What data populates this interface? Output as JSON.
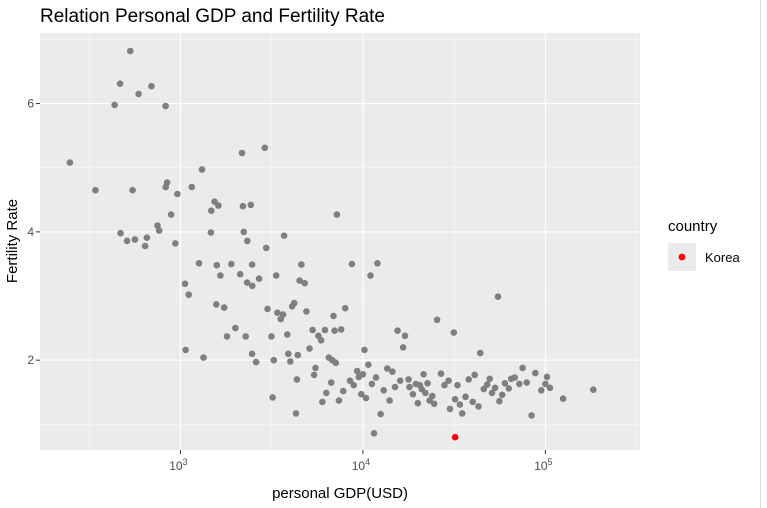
{
  "chart_data": {
    "type": "scatter",
    "title": "Relation Personal GDP and Fertility Rate",
    "xlabel": "personal GDP(USD)",
    "ylabel": "Fertility Rate",
    "x_scale": "log10",
    "xlim": [
      170,
      330000
    ],
    "ylim": [
      0.6,
      7.1
    ],
    "x_ticks": [
      {
        "value": 1000,
        "base": "10",
        "exp": "3"
      },
      {
        "value": 10000,
        "base": "10",
        "exp": "4"
      },
      {
        "value": 100000,
        "base": "10",
        "exp": "5"
      }
    ],
    "y_ticks": [
      {
        "value": 2,
        "label": "2"
      },
      {
        "value": 4,
        "label": "4"
      },
      {
        "value": 6,
        "label": "6"
      }
    ],
    "grid": true,
    "panel_background": "#ebebeb",
    "point_color": "#7f7f7f",
    "highlight_color": "#ff0000",
    "legend": {
      "title": "country",
      "position": "right",
      "items": [
        {
          "label": "Korea",
          "color": "#ff0000"
        }
      ]
    },
    "series": [
      {
        "color": "#7f7f7f",
        "points": [
          [
            248,
            5.08
          ],
          [
            342,
            4.65
          ],
          [
            436,
            5.98
          ],
          [
            467,
            6.31
          ],
          [
            531,
            6.82
          ],
          [
            590,
            6.15
          ],
          [
            693,
            6.27
          ],
          [
            829,
            5.96
          ],
          [
            470,
            3.98
          ],
          [
            510,
            3.86
          ],
          [
            547,
            4.65
          ],
          [
            563,
            3.88
          ],
          [
            640,
            3.78
          ],
          [
            655,
            3.91
          ],
          [
            749,
            4.1
          ],
          [
            765,
            4.02
          ],
          [
            830,
            4.7
          ],
          [
            845,
            4.77
          ],
          [
            889,
            4.27
          ],
          [
            937,
            3.82
          ],
          [
            962,
            4.59
          ],
          [
            1059,
            3.19
          ],
          [
            1068,
            2.16
          ],
          [
            1110,
            3.02
          ],
          [
            1155,
            4.7
          ],
          [
            1264,
            3.51
          ],
          [
            1313,
            4.97
          ],
          [
            1338,
            2.04
          ],
          [
            1468,
            3.99
          ],
          [
            1477,
            4.33
          ],
          [
            1540,
            4.47
          ],
          [
            1572,
            2.87
          ],
          [
            1582,
            3.48
          ],
          [
            1614,
            4.41
          ],
          [
            1657,
            3.32
          ],
          [
            1737,
            2.82
          ],
          [
            1800,
            2.37
          ],
          [
            1900,
            3.5
          ],
          [
            2000,
            2.5
          ],
          [
            2127,
            3.34
          ],
          [
            2200,
            4.4
          ],
          [
            2176,
            5.23
          ],
          [
            2225,
            4.0
          ],
          [
            2280,
            2.37
          ],
          [
            2326,
            3.86
          ],
          [
            2321,
            3.21
          ],
          [
            2430,
            4.42
          ],
          [
            2470,
            3.49
          ],
          [
            2478,
            3.16
          ],
          [
            2470,
            2.1
          ],
          [
            2600,
            1.97
          ],
          [
            2700,
            3.27
          ],
          [
            2900,
            5.31
          ],
          [
            2950,
            3.75
          ],
          [
            3000,
            2.8
          ],
          [
            3150,
            2.37
          ],
          [
            3200,
            1.42
          ],
          [
            3250,
            2.0
          ],
          [
            3350,
            3.32
          ],
          [
            3400,
            2.74
          ],
          [
            3550,
            2.64
          ],
          [
            3650,
            2.71
          ],
          [
            3700,
            3.94
          ],
          [
            3850,
            2.4
          ],
          [
            3900,
            2.1
          ],
          [
            4000,
            1.98
          ],
          [
            4100,
            2.84
          ],
          [
            4200,
            2.89
          ],
          [
            4300,
            1.17
          ],
          [
            4350,
            1.7
          ],
          [
            4400,
            2.08
          ],
          [
            4500,
            3.24
          ],
          [
            4600,
            3.49
          ],
          [
            4800,
            3.2
          ],
          [
            4900,
            2.76
          ],
          [
            5100,
            2.18
          ],
          [
            5300,
            2.47
          ],
          [
            5400,
            1.77
          ],
          [
            5500,
            1.88
          ],
          [
            5700,
            2.38
          ],
          [
            5900,
            2.31
          ],
          [
            6000,
            1.35
          ],
          [
            6200,
            2.47
          ],
          [
            6300,
            1.49
          ],
          [
            6500,
            2.04
          ],
          [
            6700,
            1.65
          ],
          [
            6800,
            2.0
          ],
          [
            6900,
            2.69
          ],
          [
            7000,
            2.46
          ],
          [
            7100,
            1.96
          ],
          [
            7200,
            4.27
          ],
          [
            7400,
            1.37
          ],
          [
            7600,
            2.48
          ],
          [
            7800,
            1.52
          ],
          [
            8000,
            2.81
          ],
          [
            8500,
            1.68
          ],
          [
            8700,
            3.5
          ],
          [
            8900,
            1.61
          ],
          [
            9300,
            1.83
          ],
          [
            9500,
            1.74
          ],
          [
            9800,
            1.47
          ],
          [
            10000,
            1.78
          ],
          [
            10200,
            2.16
          ],
          [
            10400,
            1.41
          ],
          [
            10700,
            1.93
          ],
          [
            11000,
            3.32
          ],
          [
            11200,
            1.63
          ],
          [
            11500,
            0.86
          ],
          [
            11800,
            1.73
          ],
          [
            12000,
            3.51
          ],
          [
            12500,
            1.16
          ],
          [
            13000,
            1.53
          ],
          [
            13600,
            1.87
          ],
          [
            14000,
            1.37
          ],
          [
            14500,
            1.82
          ],
          [
            15000,
            1.58
          ],
          [
            15500,
            2.46
          ],
          [
            16000,
            1.68
          ],
          [
            16600,
            2.2
          ],
          [
            17000,
            2.38
          ],
          [
            17800,
            1.7
          ],
          [
            18000,
            1.58
          ],
          [
            18800,
            1.47
          ],
          [
            19500,
            1.63
          ],
          [
            20000,
            1.33
          ],
          [
            20500,
            1.61
          ],
          [
            21000,
            1.55
          ],
          [
            21500,
            1.78
          ],
          [
            22000,
            1.49
          ],
          [
            22600,
            1.64
          ],
          [
            23200,
            1.37
          ],
          [
            24000,
            1.44
          ],
          [
            24600,
            1.32
          ],
          [
            25500,
            2.63
          ],
          [
            26800,
            1.79
          ],
          [
            28000,
            1.61
          ],
          [
            29500,
            1.68
          ],
          [
            30000,
            1.24
          ],
          [
            31500,
            2.43
          ],
          [
            32000,
            1.39
          ],
          [
            33000,
            1.61
          ],
          [
            34000,
            1.31
          ],
          [
            35000,
            1.17
          ],
          [
            36500,
            1.43
          ],
          [
            38000,
            1.7
          ],
          [
            40000,
            1.35
          ],
          [
            41000,
            1.77
          ],
          [
            43000,
            1.28
          ],
          [
            44000,
            2.11
          ],
          [
            46000,
            1.55
          ],
          [
            48000,
            1.62
          ],
          [
            49500,
            1.71
          ],
          [
            51000,
            1.49
          ],
          [
            53000,
            1.57
          ],
          [
            55000,
            2.99
          ],
          [
            56000,
            1.36
          ],
          [
            58000,
            1.46
          ],
          [
            60000,
            1.64
          ],
          [
            63000,
            1.56
          ],
          [
            65000,
            1.71
          ],
          [
            68000,
            1.73
          ],
          [
            72000,
            1.63
          ],
          [
            75000,
            1.88
          ],
          [
            79000,
            1.65
          ],
          [
            84000,
            1.14
          ],
          [
            88000,
            1.8
          ],
          [
            95000,
            1.53
          ],
          [
            100000,
            1.63
          ],
          [
            102000,
            1.74
          ],
          [
            106000,
            1.57
          ],
          [
            125000,
            1.4
          ],
          [
            183000,
            1.54
          ]
        ]
      },
      {
        "name": "Korea",
        "color": "#ff0000",
        "points": [
          [
            32000,
            0.8
          ]
        ]
      }
    ]
  }
}
